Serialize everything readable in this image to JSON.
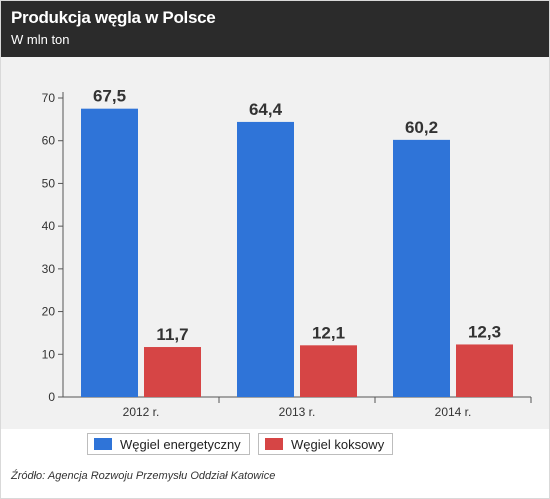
{
  "header": {
    "title": "Produkcja węgla w Polsce",
    "subtitle": "W mln ton"
  },
  "chart_data": {
    "type": "bar",
    "categories": [
      "2012 r.",
      "2013 r.",
      "2014 r."
    ],
    "series": [
      {
        "name": "Węgiel energetyczny",
        "values": [
          67.5,
          64.4,
          60.2
        ],
        "labels": [
          "67,5",
          "64,4",
          "60,2"
        ],
        "color": "#2f74d8"
      },
      {
        "name": "Węgiel koksowy",
        "values": [
          11.7,
          12.1,
          12.3
        ],
        "labels": [
          "11,7",
          "12,1",
          "12,3"
        ],
        "color": "#d64545"
      }
    ],
    "ylim": [
      0,
      70
    ],
    "yticks": [
      0,
      10,
      20,
      30,
      40,
      50,
      60,
      70
    ],
    "xlabel": "",
    "ylabel": "",
    "grid": false,
    "legend_position": "bottom"
  },
  "footer": {
    "source": "Źródło: Agencja Rozwoju Przemysłu Oddział Katowice"
  }
}
